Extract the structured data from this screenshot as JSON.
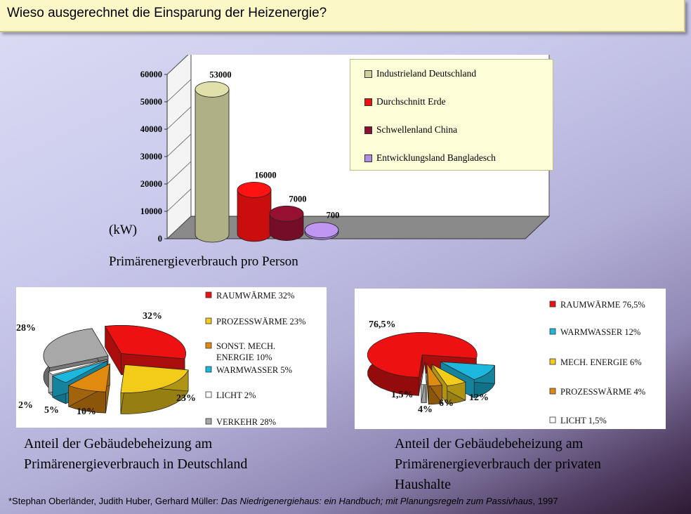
{
  "title": "Wieso ausgerechnet die Einsparung der Heizenergie?",
  "chart_data": [
    {
      "type": "bar",
      "categories": [
        "Industrieland Deutschland",
        "Durchschnitt Erde",
        "Schwellenland China",
        "Entwicklungsland Bangladesch"
      ],
      "values": [
        53000,
        16000,
        7000,
        700
      ],
      "value_labels": [
        "53000",
        "16000",
        "7000",
        "700"
      ],
      "colors": [
        "#cfcf9e",
        "#ee1111",
        "#8b0f2e",
        "#b18ce0"
      ],
      "yticks": [
        "0",
        "10000",
        "20000",
        "30000",
        "40000",
        "50000",
        "60000"
      ],
      "ylim": [
        0,
        60000
      ],
      "ylabel": "(kW)",
      "caption": "Primärenergieverbrauch pro Person",
      "legend_position": "top-right"
    },
    {
      "type": "pie",
      "labels": [
        "RAUMWÄRME 32%",
        "PROZESSWÄRME 23%",
        "SONST. MECH. ENERGIE 10%",
        "WARMWASSER 5%",
        "LICHT 2%",
        "VERKEHR 28%"
      ],
      "values": [
        32,
        23,
        10,
        5,
        2,
        28
      ],
      "slice_labels": [
        "32%",
        "23%",
        "10%",
        "5%",
        "2%",
        "28%"
      ],
      "colors": [
        "#ee1111",
        "#f3cc1a",
        "#e08a10",
        "#1cb7dc",
        "#ffffff",
        "#a8a8a8"
      ],
      "caption_lines": [
        "Anteil der Gebäudebeheizung am",
        "Primärenergieverbrauch in Deutschland"
      ]
    },
    {
      "type": "pie",
      "labels": [
        "RAUMWÄRME 76,5%",
        "WARMWASSER 12%",
        "MECH. ENERGIE 6%",
        "PROZESSWÄRME 4%",
        "LICHT 1,5%"
      ],
      "values": [
        76.5,
        12,
        6,
        4,
        1.5
      ],
      "slice_labels": [
        "76,5%",
        "12%",
        "6%",
        "4%",
        "1,5%"
      ],
      "colors": [
        "#ee1111",
        "#1cb7dc",
        "#f3cc1a",
        "#e08a10",
        "#ffffff"
      ],
      "caption_lines": [
        "Anteil der Gebäudebeheizung am",
        "Primärenergieverbrauch der privaten",
        "Haushalte"
      ]
    }
  ],
  "footnote": {
    "authors": "*Stephan Oberländer, Judith Huber, Gerhard Müller:",
    "book": "Das Niedrigenergiehaus: ein Handbuch; mit Planungsregeln zum Passivhaus",
    "year": ", 1997"
  }
}
